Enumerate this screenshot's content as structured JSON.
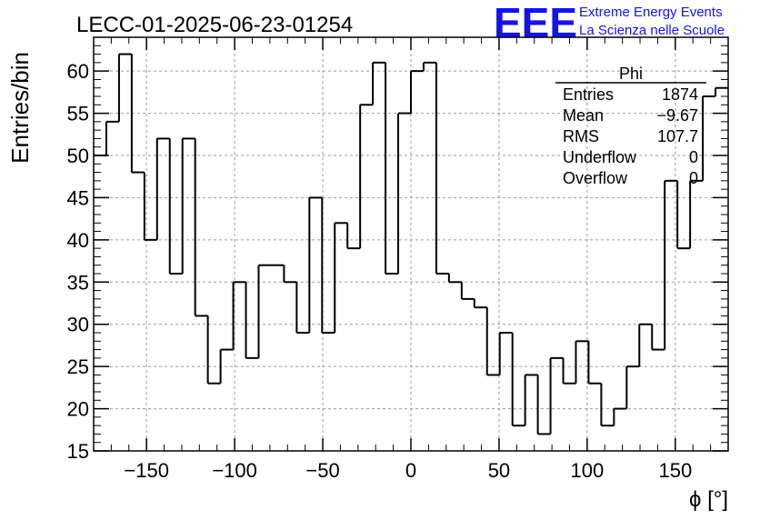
{
  "header": {
    "run_title": "LECC-01-2025-06-23-01254",
    "logo_mark": "EEE",
    "logo_line1": "Extreme Energy Events",
    "logo_line2": "La Scienza nelle Scuole"
  },
  "colors": {
    "logo_blue": "#1414e6",
    "grid": "#9a9a9a",
    "line": "#000000"
  },
  "stats": {
    "title": "Phi",
    "rows": [
      {
        "label": "Entries",
        "value": "1874"
      },
      {
        "label": "Mean",
        "value": "−9.67"
      },
      {
        "label": "RMS",
        "value": "107.7"
      },
      {
        "label": "Underflow",
        "value": "0"
      },
      {
        "label": "Overflow",
        "value": "0"
      }
    ]
  },
  "chart_data": {
    "type": "histogram",
    "xlabel": "ϕ [°]",
    "ylabel": "Entries/bin",
    "xlim": [
      -180,
      180
    ],
    "ylim": [
      15,
      64
    ],
    "grid": true,
    "bin_edges_start": -180,
    "bin_width": 7.2,
    "counts": [
      50,
      54,
      62,
      48,
      40,
      52,
      36,
      52,
      31,
      23,
      27,
      35,
      26,
      37,
      37,
      35,
      29,
      45,
      29,
      42,
      39,
      56,
      61,
      36,
      55,
      60,
      61,
      36,
      35,
      33,
      32,
      24,
      29,
      18,
      24,
      17,
      26,
      23,
      28,
      23,
      18,
      20,
      25,
      30,
      27,
      47,
      39,
      47,
      57,
      58
    ],
    "x_ticks": [
      -150,
      -100,
      -50,
      0,
      50,
      100,
      150
    ],
    "x_tick_labels": [
      "−150",
      "−100",
      "−50",
      "0",
      "50",
      "100",
      "150"
    ],
    "y_ticks": [
      15,
      20,
      25,
      30,
      35,
      40,
      45,
      50,
      55,
      60
    ],
    "y_tick_labels": [
      "15",
      "20",
      "25",
      "30",
      "35",
      "40",
      "45",
      "50",
      "55",
      "60"
    ]
  }
}
